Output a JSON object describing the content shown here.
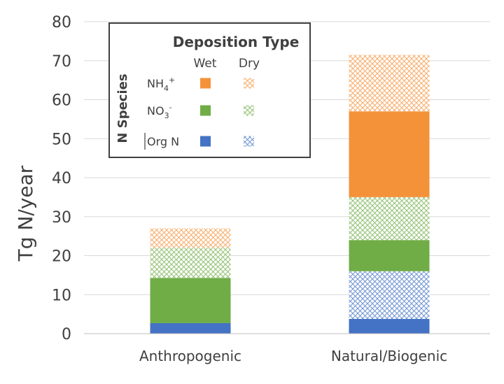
{
  "chart_data": {
    "type": "bar",
    "stacked": true,
    "title": "",
    "xlabel": "",
    "ylabel": "Tg N/year",
    "ylim": [
      0,
      80
    ],
    "yticks": [
      0,
      10,
      20,
      30,
      40,
      50,
      60,
      70,
      80
    ],
    "grid": true,
    "categories": [
      "Anthropogenic",
      "Natural/Biogenic"
    ],
    "series": [
      {
        "name": "Org N Wet",
        "species": "Org N",
        "deposition": "Wet",
        "color": "#4472c4",
        "pattern": "solid",
        "values": [
          2.7,
          3.8
        ]
      },
      {
        "name": "Org N Dry",
        "species": "Org N",
        "deposition": "Dry",
        "color": "#4472c4",
        "pattern": "crosshatch",
        "values": [
          0,
          12.2
        ]
      },
      {
        "name": "NO3- Wet",
        "species": "NO3-",
        "deposition": "Wet",
        "color": "#70ad47",
        "pattern": "solid",
        "values": [
          11.6,
          8.0
        ]
      },
      {
        "name": "NO3- Dry",
        "species": "NO3-",
        "deposition": "Dry",
        "color": "#70ad47",
        "pattern": "crosshatch",
        "values": [
          7.7,
          11.0
        ]
      },
      {
        "name": "NH4+ Wet",
        "species": "NH4+",
        "deposition": "Wet",
        "color": "#f4923a",
        "pattern": "solid",
        "values": [
          0,
          22.0
        ]
      },
      {
        "name": "NH4+ Dry",
        "species": "NH4+",
        "deposition": "Dry",
        "color": "#f4923a",
        "pattern": "crosshatch",
        "values": [
          5.0,
          14.5
        ]
      }
    ],
    "legend": {
      "placement": "top-left",
      "title": "Deposition Type",
      "side_label": "N Species",
      "columns": [
        "Wet",
        "Dry"
      ],
      "rows": [
        {
          "base": "NH",
          "sub": "4",
          "sup": "+",
          "color": "#f4923a"
        },
        {
          "base": "NO",
          "sub": "3",
          "sup": "-",
          "color": "#70ad47"
        },
        {
          "base": "Org N",
          "sub": "",
          "sup": "",
          "color": "#4472c4"
        }
      ]
    }
  }
}
